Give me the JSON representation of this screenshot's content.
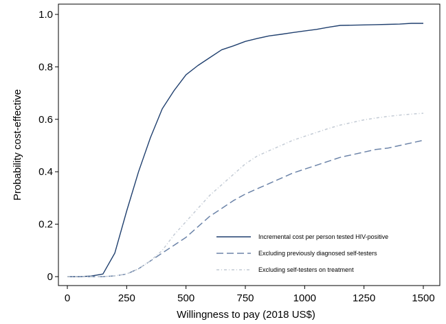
{
  "chart_data": {
    "type": "line",
    "title": "",
    "xlabel": "Willingness to pay (2018 US$)",
    "ylabel": "Probability cost-effective",
    "xlim": [
      0,
      1500
    ],
    "ylim": [
      0,
      1.0
    ],
    "xticks": [
      0,
      250,
      500,
      750,
      1000,
      1250,
      1500
    ],
    "yticks": [
      0,
      0.2,
      0.4,
      0.6,
      0.8,
      1.0
    ],
    "xtick_labels": [
      "0",
      "250",
      "500",
      "750",
      "1000",
      "1250",
      "1500"
    ],
    "ytick_labels": [
      "0",
      "0.2",
      "0.4",
      "0.6",
      "0.8",
      "1.0"
    ],
    "grid": false,
    "legend_position": "bottom-right",
    "series": [
      {
        "name": "Incremental cost per person tested HIV-positive",
        "color": "#1f3f6e",
        "style": "solid",
        "x": [
          0,
          50,
          100,
          150,
          200,
          250,
          300,
          350,
          400,
          450,
          500,
          550,
          600,
          650,
          700,
          750,
          800,
          850,
          900,
          950,
          1000,
          1050,
          1100,
          1150,
          1200,
          1250,
          1300,
          1350,
          1400,
          1450,
          1500
        ],
        "y": [
          0,
          0,
          0.002,
          0.01,
          0.09,
          0.25,
          0.4,
          0.53,
          0.64,
          0.71,
          0.77,
          0.805,
          0.835,
          0.865,
          0.88,
          0.897,
          0.908,
          0.918,
          0.924,
          0.931,
          0.937,
          0.943,
          0.951,
          0.958,
          0.959,
          0.96,
          0.961,
          0.962,
          0.963,
          0.966,
          0.966
        ]
      },
      {
        "name": "Excluding previously diagnosed self-testers",
        "color": "#6b83a8",
        "style": "dashed",
        "x": [
          0,
          50,
          100,
          150,
          200,
          250,
          300,
          350,
          400,
          450,
          500,
          550,
          600,
          650,
          700,
          750,
          800,
          850,
          900,
          950,
          1000,
          1050,
          1100,
          1150,
          1200,
          1250,
          1300,
          1350,
          1400,
          1450,
          1500
        ],
        "y": [
          0,
          0,
          0,
          0,
          0.003,
          0.01,
          0.03,
          0.06,
          0.09,
          0.12,
          0.15,
          0.19,
          0.23,
          0.26,
          0.29,
          0.315,
          0.335,
          0.355,
          0.375,
          0.395,
          0.41,
          0.425,
          0.44,
          0.455,
          0.465,
          0.475,
          0.485,
          0.49,
          0.5,
          0.51,
          0.52
        ]
      },
      {
        "name": "Excluding self-testers on treatment",
        "color": "#c2cad4",
        "style": "dash-dot",
        "x": [
          0,
          50,
          100,
          150,
          200,
          250,
          300,
          350,
          400,
          450,
          500,
          550,
          600,
          650,
          700,
          750,
          800,
          850,
          900,
          950,
          1000,
          1050,
          1100,
          1150,
          1200,
          1250,
          1300,
          1350,
          1400,
          1450,
          1500
        ],
        "y": [
          0,
          0,
          0,
          0,
          0.003,
          0.01,
          0.03,
          0.06,
          0.1,
          0.16,
          0.21,
          0.26,
          0.31,
          0.35,
          0.39,
          0.43,
          0.46,
          0.48,
          0.5,
          0.52,
          0.535,
          0.55,
          0.565,
          0.578,
          0.588,
          0.598,
          0.605,
          0.611,
          0.616,
          0.62,
          0.623
        ]
      }
    ]
  }
}
